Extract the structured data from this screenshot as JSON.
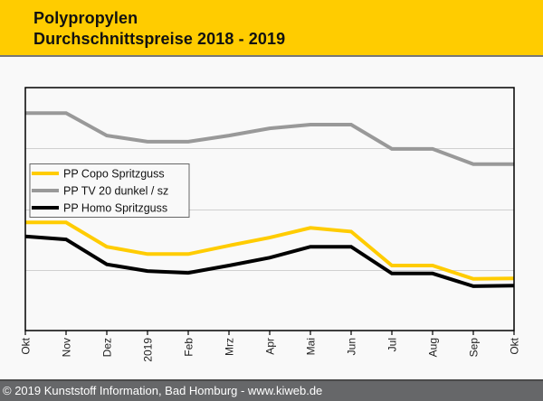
{
  "header": {
    "title_line1": "Polypropylen",
    "title_line2": "Durchschnittspreise 2018 - 2019"
  },
  "footer": {
    "text": "© 2019 Kunststoff Information, Bad Homburg - www.kiweb.de"
  },
  "colors": {
    "header_bg": "#ffcc00",
    "footer_bg": "#666769"
  },
  "chart_data": {
    "type": "line",
    "title": "Polypropylen Durchschnittspreise 2018 - 2019",
    "xlabel": "",
    "ylabel": "",
    "categories": [
      "Okt",
      "Nov",
      "Dez",
      "2019",
      "Feb",
      "Mrz",
      "Apr",
      "Mai",
      "Jun",
      "Jul",
      "Aug",
      "Sep",
      "Okt"
    ],
    "ylim": [
      0,
      4
    ],
    "y_ticks_labeled": false,
    "gridlines": [
      1,
      2,
      3
    ],
    "grid": true,
    "legend_position": "left-middle",
    "series": [
      {
        "name": "PP Copo Spritzguss",
        "color": "#ffcc00",
        "values": [
          1.78,
          1.78,
          1.38,
          1.26,
          1.26,
          1.4,
          1.53,
          1.69,
          1.63,
          1.07,
          1.07,
          0.85,
          0.86
        ]
      },
      {
        "name": "PP TV 20 dunkel / sz",
        "color": "#999999",
        "values": [
          3.58,
          3.58,
          3.21,
          3.11,
          3.11,
          3.21,
          3.33,
          3.39,
          3.39,
          2.99,
          2.99,
          2.74,
          2.74
        ]
      },
      {
        "name": "PP Homo Spritzguss",
        "color": "#000000",
        "values": [
          1.55,
          1.5,
          1.09,
          0.98,
          0.95,
          1.07,
          1.2,
          1.38,
          1.38,
          0.94,
          0.94,
          0.73,
          0.74
        ]
      }
    ]
  }
}
